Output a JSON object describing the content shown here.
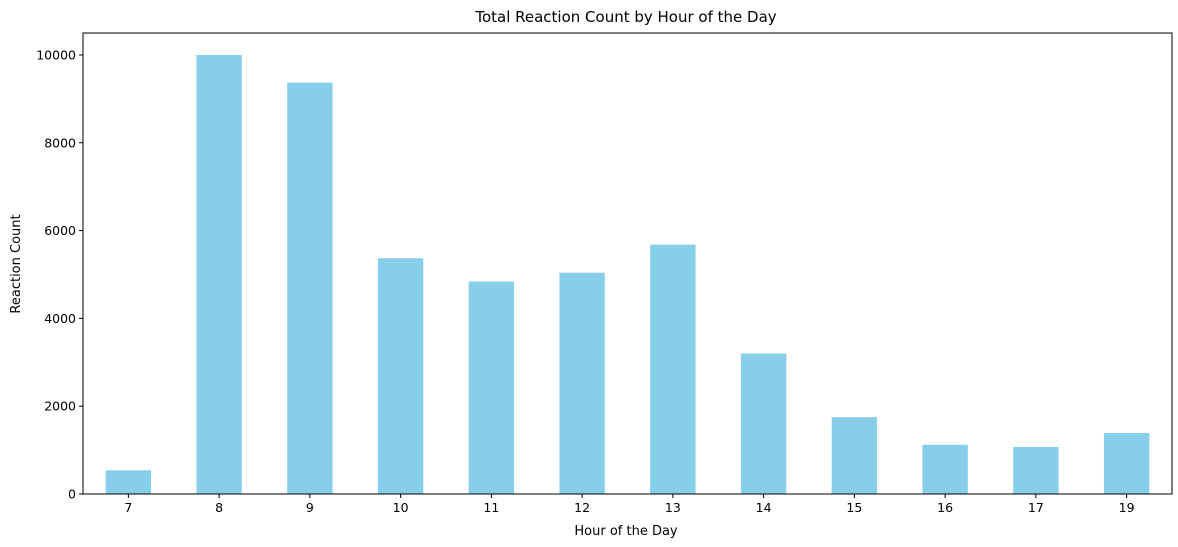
{
  "chart_data": {
    "type": "bar",
    "title": "Total Reaction Count by Hour of the Day",
    "xlabel": "Hour of the Day",
    "ylabel": "Reaction Count",
    "categories": [
      "7",
      "8",
      "9",
      "10",
      "11",
      "12",
      "13",
      "14",
      "15",
      "16",
      "17",
      "19"
    ],
    "values": [
      540,
      10000,
      9370,
      5370,
      4840,
      5040,
      5680,
      3200,
      1750,
      1120,
      1070,
      1390
    ],
    "ylim": [
      0,
      10500
    ],
    "yticks": [
      0,
      2000,
      4000,
      6000,
      8000,
      10000
    ],
    "grid": false,
    "legend": "none",
    "bar_color": "#87CEEB"
  }
}
